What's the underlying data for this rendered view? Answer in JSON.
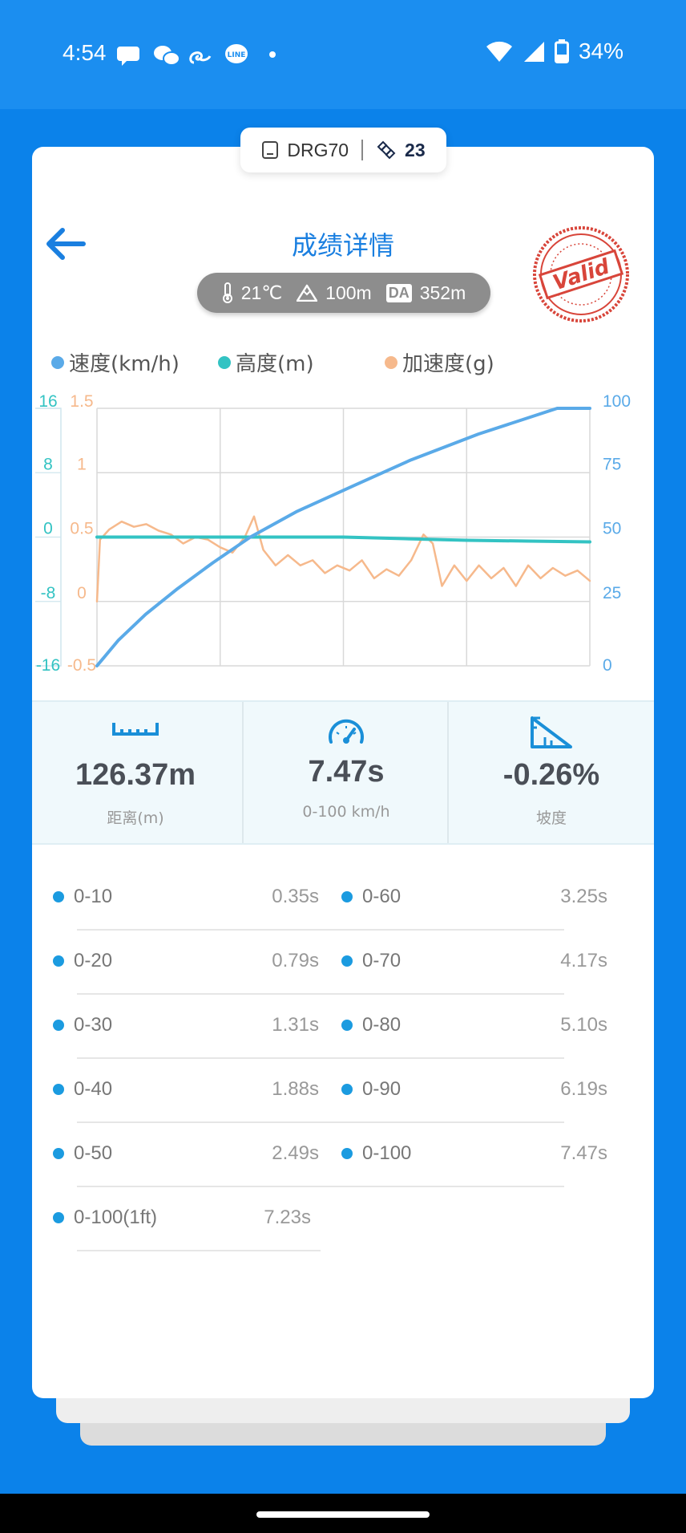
{
  "status_bar": {
    "time": "4:54",
    "battery": "34%",
    "notification_icons": [
      "chat-bubble-icon",
      "wechat-icon",
      "swirl-icon",
      "line-icon",
      "dot-icon"
    ]
  },
  "device": {
    "name": "DRG70",
    "satellites": "23"
  },
  "header": {
    "title": "成绩详情",
    "stamp": "Valid"
  },
  "conditions": {
    "temperature": "21℃",
    "altitude": "100m",
    "da_label": "DA",
    "density_altitude": "352m"
  },
  "legend": [
    {
      "name": "速度(km/h)",
      "color": "#5aaae8"
    },
    {
      "name": "高度(m)",
      "color": "#33c3c3"
    },
    {
      "name": "加速度(g)",
      "color": "#f6b98c"
    }
  ],
  "chart_data": {
    "type": "line",
    "grid": true,
    "x_range": [
      0,
      8
    ],
    "axes": {
      "altitude_ticks": [
        "16",
        "8",
        "0",
        "-8",
        "-16"
      ],
      "altitude_range": [
        -16,
        16
      ],
      "accel_ticks": [
        "1.5",
        "1",
        "0.5",
        "0",
        "-0.5"
      ],
      "accel_range": [
        -0.5,
        1.5
      ],
      "speed_ticks": [
        "100",
        "75",
        "50",
        "25",
        "0"
      ],
      "speed_range": [
        0,
        100
      ]
    },
    "series": [
      {
        "name": "速度(km/h)",
        "axis": "speed",
        "points": [
          [
            0,
            0
          ],
          [
            0.35,
            10
          ],
          [
            0.79,
            20
          ],
          [
            1.31,
            30
          ],
          [
            1.88,
            40
          ],
          [
            2.49,
            50
          ],
          [
            3.25,
            60
          ],
          [
            4.17,
            70
          ],
          [
            5.1,
            80
          ],
          [
            6.19,
            90
          ],
          [
            7.47,
            100
          ],
          [
            8,
            100
          ]
        ]
      },
      {
        "name": "高度(m)",
        "axis": "altitude",
        "points": [
          [
            0,
            0
          ],
          [
            1,
            0
          ],
          [
            2,
            0
          ],
          [
            3,
            0
          ],
          [
            4,
            0
          ],
          [
            5,
            -0.2
          ],
          [
            6,
            -0.4
          ],
          [
            7,
            -0.5
          ],
          [
            8,
            -0.6
          ]
        ]
      },
      {
        "name": "加速度(g)",
        "axis": "accel",
        "points": [
          [
            0,
            0
          ],
          [
            0.05,
            0.48
          ],
          [
            0.2,
            0.56
          ],
          [
            0.4,
            0.62
          ],
          [
            0.6,
            0.58
          ],
          [
            0.8,
            0.6
          ],
          [
            1.0,
            0.55
          ],
          [
            1.2,
            0.52
          ],
          [
            1.4,
            0.45
          ],
          [
            1.6,
            0.5
          ],
          [
            1.8,
            0.48
          ],
          [
            2.0,
            0.42
          ],
          [
            2.2,
            0.38
          ],
          [
            2.4,
            0.5
          ],
          [
            2.55,
            0.66
          ],
          [
            2.7,
            0.4
          ],
          [
            2.9,
            0.28
          ],
          [
            3.1,
            0.36
          ],
          [
            3.3,
            0.28
          ],
          [
            3.5,
            0.32
          ],
          [
            3.7,
            0.22
          ],
          [
            3.9,
            0.28
          ],
          [
            4.1,
            0.24
          ],
          [
            4.3,
            0.32
          ],
          [
            4.5,
            0.18
          ],
          [
            4.7,
            0.25
          ],
          [
            4.9,
            0.2
          ],
          [
            5.1,
            0.32
          ],
          [
            5.3,
            0.52
          ],
          [
            5.45,
            0.45
          ],
          [
            5.6,
            0.12
          ],
          [
            5.8,
            0.28
          ],
          [
            6.0,
            0.16
          ],
          [
            6.2,
            0.28
          ],
          [
            6.4,
            0.18
          ],
          [
            6.6,
            0.26
          ],
          [
            6.8,
            0.12
          ],
          [
            7.0,
            0.28
          ],
          [
            7.2,
            0.18
          ],
          [
            7.4,
            0.26
          ],
          [
            7.6,
            0.2
          ],
          [
            7.8,
            0.24
          ],
          [
            8.0,
            0.16
          ]
        ]
      }
    ]
  },
  "stats": [
    {
      "value": "126.37m",
      "label": "距离(m)",
      "icon": "ruler-icon"
    },
    {
      "value": "7.47s",
      "label": "0-100 km/h",
      "icon": "speedometer-icon"
    },
    {
      "value": "-0.26%",
      "label": "坡度",
      "icon": "slope-icon"
    }
  ],
  "splits": [
    {
      "label": "0-10",
      "time": "0.35s"
    },
    {
      "label": "0-60",
      "time": "3.25s"
    },
    {
      "label": "0-20",
      "time": "0.79s"
    },
    {
      "label": "0-70",
      "time": "4.17s"
    },
    {
      "label": "0-30",
      "time": "1.31s"
    },
    {
      "label": "0-80",
      "time": "5.10s"
    },
    {
      "label": "0-40",
      "time": "1.88s"
    },
    {
      "label": "0-90",
      "time": "6.19s"
    },
    {
      "label": "0-50",
      "time": "2.49s"
    },
    {
      "label": "0-100",
      "time": "7.47s"
    },
    {
      "label": "0-100(1ft)",
      "time": "7.23s"
    }
  ]
}
